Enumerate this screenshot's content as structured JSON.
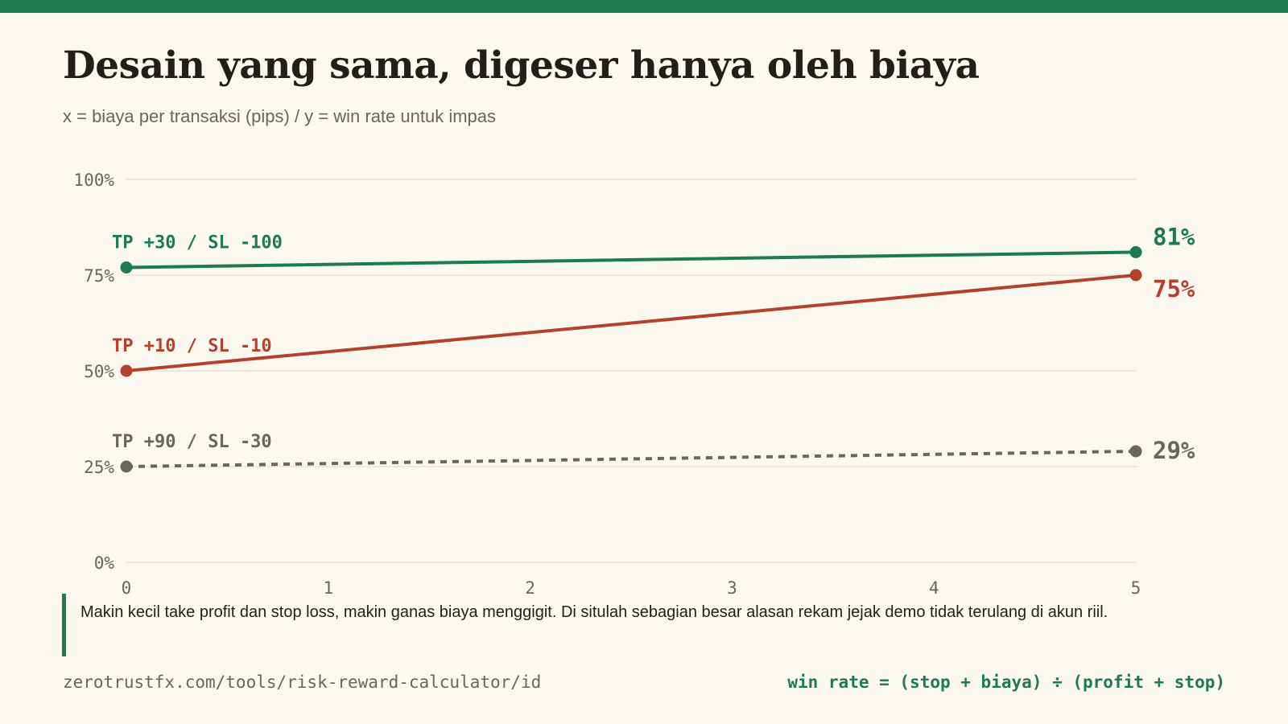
{
  "colors": {
    "accent": "#1e7a4f",
    "red": "#b5402b",
    "gray": "#6b655c",
    "background": "#fbf8f0",
    "text": "#221e1a",
    "grid": "#ddd7c4"
  },
  "header": {
    "title": "Desain yang sama, digeser hanya oleh biaya",
    "subtitle": "x = biaya per transaksi (pips) / y = win rate untuk impas"
  },
  "chart_data": {
    "type": "line",
    "x": [
      0,
      5
    ],
    "xlim": [
      0,
      5
    ],
    "ylim": [
      0,
      100
    ],
    "x_ticks": [
      "0",
      "1",
      "2",
      "3",
      "4",
      "5"
    ],
    "y_ticks": [
      "0%",
      "25%",
      "50%",
      "75%",
      "100%"
    ],
    "grid": true,
    "series": [
      {
        "name": "TP +30 / SL -100",
        "values": [
          77,
          81
        ],
        "end_label": "81%",
        "color": "#1e7a4f",
        "style": "solid"
      },
      {
        "name": "TP +10 / SL -10",
        "values": [
          50,
          75
        ],
        "end_label": "75%",
        "color": "#b5402b",
        "style": "solid"
      },
      {
        "name": "TP +90 / SL -30",
        "values": [
          25,
          29
        ],
        "end_label": "29%",
        "color": "#6b655c",
        "style": "dashed"
      }
    ]
  },
  "callout": {
    "text": "Makin kecil take profit dan stop loss, makin ganas biaya menggigit. Di situlah sebagian besar alasan rekam jejak demo tidak terulang di akun riil."
  },
  "footer": {
    "url": "zerotrustfx.com/tools/risk-reward-calculator/id",
    "formula": "win rate = (stop + biaya) ÷ (profit + stop)"
  }
}
